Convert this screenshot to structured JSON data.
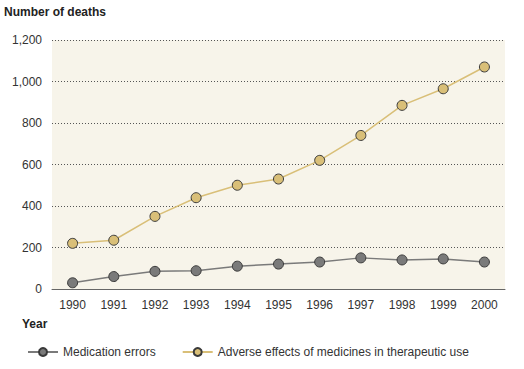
{
  "chart_data": {
    "type": "line",
    "y_label": "Number of deaths",
    "x_label": "Year",
    "categories": [
      "1990",
      "1991",
      "1992",
      "1993",
      "1994",
      "1995",
      "1996",
      "1997",
      "1998",
      "1999",
      "2000"
    ],
    "series": [
      {
        "name": "Medication errors",
        "color": "#7a7a7a",
        "marker": "circle",
        "line_style": "solid",
        "values": [
          30,
          60,
          85,
          88,
          110,
          120,
          130,
          150,
          140,
          145,
          130
        ]
      },
      {
        "name": "Adverse effects of medicines in therapeutic use",
        "color": "#d9bf78",
        "marker": "circle",
        "line_style": "solid",
        "values": [
          220,
          235,
          350,
          440,
          500,
          530,
          620,
          740,
          885,
          965,
          1070
        ]
      }
    ],
    "ylim": [
      0,
      1200
    ],
    "yticks": [
      0,
      200,
      400,
      600,
      800,
      {
        "value": 1000,
        "label": "1,000"
      },
      {
        "value": 1200,
        "label": "1,200"
      }
    ],
    "grid": true,
    "legend": "bottom"
  }
}
